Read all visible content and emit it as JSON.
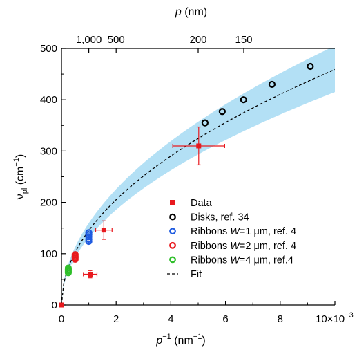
{
  "chart_data": {
    "type": "scatter",
    "x_axis": {
      "label_main": "p",
      "label_sup": "−1",
      "label_unit": " (nm",
      "label_unit_sup": "−1",
      "label_close": ")",
      "range": [
        0,
        0.01
      ],
      "ticks": [
        0,
        0.002,
        0.004,
        0.006,
        0.008
      ],
      "tick_labels": [
        "0",
        "2",
        "4",
        "6",
        "8"
      ],
      "last_tick_label": "10×10",
      "last_tick_exponent": "−3"
    },
    "top_axis": {
      "label_var": "p",
      "label_unit": " (nm)",
      "ticks_p": [
        1000,
        500,
        200,
        150
      ],
      "tick_labels": [
        "1,000",
        "500",
        "200",
        "150"
      ]
    },
    "y_axis": {
      "label_main": "ν",
      "label_sub": "pl",
      "label_unit": " (cm",
      "label_unit_sup": "−1",
      "label_close": ")",
      "range": [
        0,
        500
      ],
      "ticks": [
        0,
        100,
        200,
        300,
        400,
        500
      ],
      "tick_labels": [
        "0",
        "100",
        "200",
        "300",
        "400",
        "500"
      ]
    },
    "fit": {
      "name": "Fit",
      "model": "A*sqrt(x)",
      "A": 4590,
      "band_low": 4150,
      "band_high": 5050,
      "band_color": "#b3e0f5",
      "line_color": "#000000"
    },
    "series": [
      {
        "name": "Data",
        "marker": "square",
        "color": "#e8191e",
        "points": [
          {
            "x": 0.0,
            "y": 0,
            "xerr": 0.0,
            "yerr": 0
          },
          {
            "x": 0.00105,
            "y": 60,
            "xerr": 0.00025,
            "yerr": 7
          },
          {
            "x": 0.00155,
            "y": 146,
            "xerr": 0.0003,
            "yerr": 18
          },
          {
            "x": 0.00502,
            "y": 310,
            "xerr": 0.00095,
            "yerr": 37
          }
        ]
      },
      {
        "name": "Disks, ref. 34",
        "marker": "circle",
        "color": "#000000",
        "points": [
          {
            "x": 0.00525,
            "y": 355
          },
          {
            "x": 0.00588,
            "y": 377
          },
          {
            "x": 0.00666,
            "y": 400
          },
          {
            "x": 0.0077,
            "y": 430
          },
          {
            "x": 0.0091,
            "y": 465
          }
        ]
      },
      {
        "name": "Ribbons W=1 μm, ref. 4",
        "label_pre": "Ribbons ",
        "label_italic": "W",
        "label_post": "=1 μm, ref. 4",
        "marker": "circle",
        "color": "#1f5be0",
        "points": [
          {
            "x": 0.001,
            "y": 124
          },
          {
            "x": 0.001,
            "y": 128
          },
          {
            "x": 0.001,
            "y": 133
          },
          {
            "x": 0.001,
            "y": 137
          },
          {
            "x": 0.001,
            "y": 141
          }
        ]
      },
      {
        "name": "Ribbons W=2 μm, ref. 4",
        "label_pre": "Ribbons ",
        "label_italic": "W",
        "label_post": "=2 μm, ref. 4",
        "marker": "circle",
        "color": "#e8191e",
        "points": [
          {
            "x": 0.0005,
            "y": 89
          },
          {
            "x": 0.0005,
            "y": 92
          },
          {
            "x": 0.0005,
            "y": 95
          },
          {
            "x": 0.0005,
            "y": 98
          }
        ]
      },
      {
        "name": "Ribbons W=4 μm, ref.4",
        "label_pre": "Ribbons ",
        "label_italic": "W",
        "label_post": "=4 μm, ref.4",
        "marker": "circle",
        "color": "#2fbf2a",
        "points": [
          {
            "x": 0.00025,
            "y": 63
          },
          {
            "x": 0.00025,
            "y": 66
          },
          {
            "x": 0.00025,
            "y": 69
          },
          {
            "x": 0.00025,
            "y": 72
          }
        ]
      }
    ],
    "legend": {
      "placement": "bottom-right",
      "entries": [
        "Data",
        "Disks, ref. 34",
        "Ribbons W=1 μm, ref. 4",
        "Ribbons W=2 μm, ref. 4",
        "Ribbons W=4 μm, ref.4",
        "Fit"
      ]
    },
    "grid": false
  }
}
